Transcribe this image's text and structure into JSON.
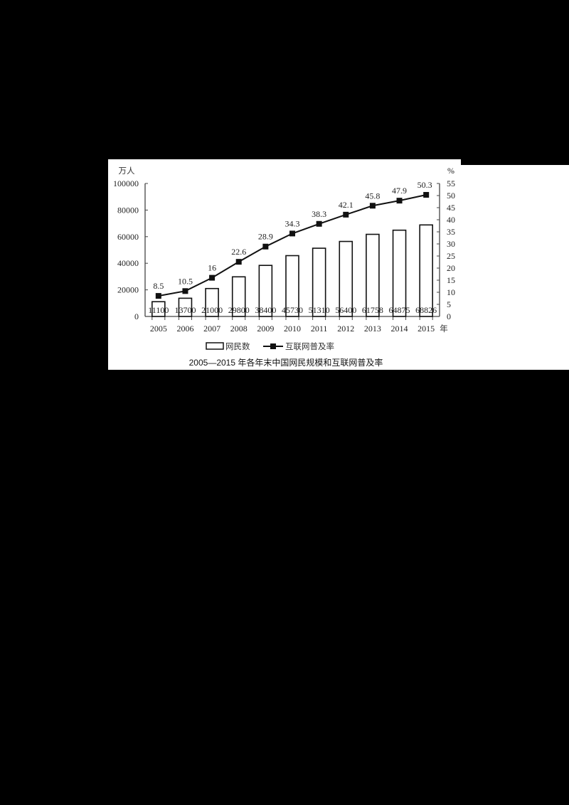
{
  "chart_data": {
    "type": "bar+line",
    "title": "2005—2015 年各年末中国网民规模和互联网普及率",
    "categories": [
      "2005",
      "2006",
      "2007",
      "2008",
      "2009",
      "2010",
      "2011",
      "2012",
      "2013",
      "2014",
      "2015"
    ],
    "x_unit": "年",
    "series": [
      {
        "name": "网民数",
        "type": "bar",
        "axis": "left",
        "values": [
          11100,
          13700,
          21000,
          29800,
          38400,
          45730,
          51310,
          56400,
          61758,
          64875,
          68826
        ]
      },
      {
        "name": "互联网普及率",
        "type": "line",
        "axis": "right",
        "values": [
          8.5,
          10.5,
          16,
          22.6,
          28.9,
          34.3,
          38.3,
          42.1,
          45.8,
          47.9,
          50.3
        ]
      }
    ],
    "left_axis": {
      "label": "万人",
      "ticks": [
        "0",
        "20000",
        "40000",
        "60000",
        "80000",
        "100000"
      ],
      "ylim": [
        0,
        100000
      ]
    },
    "right_axis": {
      "label": "%",
      "ticks": [
        "0",
        "5",
        "10",
        "15",
        "20",
        "25",
        "30",
        "35",
        "40",
        "45",
        "50",
        "55"
      ],
      "ylim": [
        0,
        55
      ]
    },
    "legend": {
      "position": "bottom",
      "items": [
        "网民数",
        "互联网普及率"
      ]
    },
    "grid": false
  }
}
